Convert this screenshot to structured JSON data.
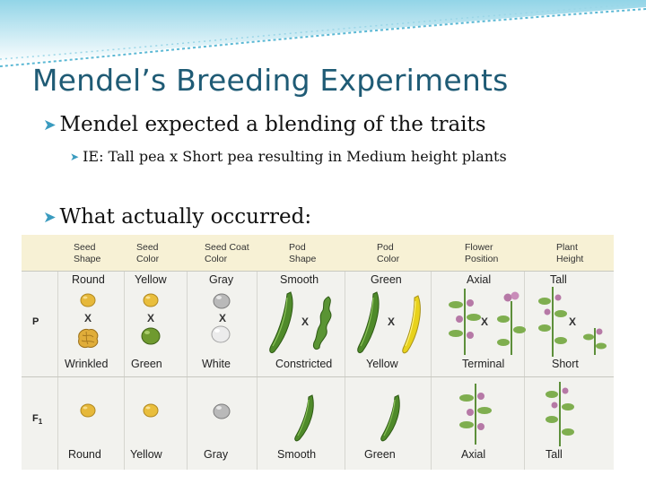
{
  "slide": {
    "title": "Mendel’s Breeding Experiments",
    "bullets": [
      {
        "text": "Mendel expected a blending of the traits",
        "level": 1
      },
      {
        "text": "IE:  Tall pea x Short pea resulting in Medium height plants",
        "level": 2
      },
      {
        "text": "What actually occurred:",
        "level": 1
      }
    ]
  },
  "table": {
    "columns": [
      {
        "header": "Seed\nShape",
        "p_top": "Round",
        "p_bottom": "Wrinkled",
        "f1": "Round"
      },
      {
        "header": "Seed\nColor",
        "p_top": "Yellow",
        "p_bottom": "Green",
        "f1": "Yellow"
      },
      {
        "header": "Seed Coat\nColor",
        "p_top": "Gray",
        "p_bottom": "White",
        "f1": "Gray"
      },
      {
        "header": "Pod\nShape",
        "p_top": "Smooth",
        "p_bottom": "Constricted",
        "f1": "Smooth"
      },
      {
        "header": "Pod\nColor",
        "p_top": "Green",
        "p_bottom": "Yellow",
        "f1": "Green"
      },
      {
        "header": "Flower\nPosition",
        "p_top": "Axial",
        "p_bottom": "Terminal",
        "f1": "Axial"
      },
      {
        "header": "Plant\nHeight",
        "p_top": "Tall",
        "p_bottom": "Short",
        "f1": "Tall"
      }
    ],
    "rows": {
      "p": "P",
      "f1_main": "F",
      "f1_sub": "1"
    },
    "cross_symbol": "X"
  },
  "colors": {
    "title": "#1f5b75",
    "bullet_mark": "#3a9bbf",
    "header_band": "#f7f1d5",
    "table_bg": "#f2f2ee",
    "seed_yellow": "#e6b83a",
    "seed_green": "#6f9a2f",
    "seed_gray": "#b9b9b9",
    "pod_green": "#4f8a2a",
    "pod_yellow": "#e8d21c",
    "flower": "#b679a6"
  }
}
